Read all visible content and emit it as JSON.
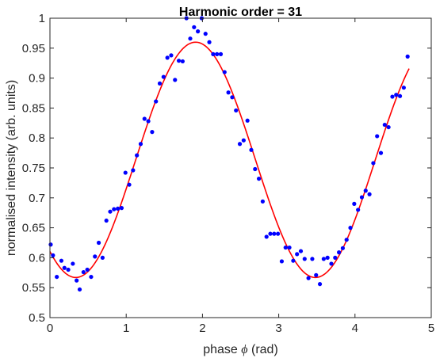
{
  "chart_data": {
    "type": "scatter",
    "title": "Harmonic order = 31",
    "xlabel_prefix": "phase ",
    "xlabel_symbol": "ϕ",
    "xlabel_suffix": " (rad)",
    "ylabel": "normalised intensity (arb. units)",
    "xlim": [
      0,
      5
    ],
    "ylim": [
      0.5,
      1.0
    ],
    "xticks": [
      0,
      1,
      2,
      3,
      4,
      5
    ],
    "xtick_labels": [
      "0",
      "1",
      "2",
      "3",
      "4",
      "5"
    ],
    "yticks": [
      0.5,
      0.55,
      0.6,
      0.65,
      0.7,
      0.75,
      0.8,
      0.85,
      0.9,
      0.95,
      1.0
    ],
    "ytick_labels": [
      "0.5",
      "0.55",
      "0.6",
      "0.65",
      "0.7",
      "0.75",
      "0.8",
      "0.85",
      "0.9",
      "0.95",
      "1"
    ],
    "grid": false,
    "box": true,
    "series": [
      {
        "kind": "scatter",
        "color": "#0000ff",
        "points": [
          [
            0.01,
            0.622
          ],
          [
            0.04,
            0.604
          ],
          [
            0.09,
            0.568
          ],
          [
            0.15,
            0.595
          ],
          [
            0.19,
            0.583
          ],
          [
            0.24,
            0.58
          ],
          [
            0.3,
            0.59
          ],
          [
            0.35,
            0.562
          ],
          [
            0.39,
            0.547
          ],
          [
            0.44,
            0.576
          ],
          [
            0.49,
            0.58
          ],
          [
            0.54,
            0.568
          ],
          [
            0.59,
            0.602
          ],
          [
            0.64,
            0.625
          ],
          [
            0.69,
            0.6
          ],
          [
            0.74,
            0.662
          ],
          [
            0.79,
            0.677
          ],
          [
            0.84,
            0.681
          ],
          [
            0.89,
            0.682
          ],
          [
            0.94,
            0.683
          ],
          [
            0.99,
            0.742
          ],
          [
            1.04,
            0.722
          ],
          [
            1.09,
            0.746
          ],
          [
            1.14,
            0.771
          ],
          [
            1.19,
            0.79
          ],
          [
            1.24,
            0.832
          ],
          [
            1.29,
            0.828
          ],
          [
            1.34,
            0.81
          ],
          [
            1.39,
            0.861
          ],
          [
            1.44,
            0.891
          ],
          [
            1.49,
            0.902
          ],
          [
            1.54,
            0.934
          ],
          [
            1.59,
            0.938
          ],
          [
            1.64,
            0.897
          ],
          [
            1.69,
            0.929
          ],
          [
            1.74,
            0.928
          ],
          [
            1.79,
            1.0
          ],
          [
            1.84,
            0.966
          ],
          [
            1.89,
            0.985
          ],
          [
            1.94,
            0.978
          ],
          [
            1.99,
            1.0
          ],
          [
            2.04,
            0.974
          ],
          [
            2.09,
            0.96
          ],
          [
            2.14,
            0.94
          ],
          [
            2.19,
            0.94
          ],
          [
            2.24,
            0.94
          ],
          [
            2.29,
            0.91
          ],
          [
            2.34,
            0.876
          ],
          [
            2.39,
            0.868
          ],
          [
            2.44,
            0.846
          ],
          [
            2.49,
            0.79
          ],
          [
            2.54,
            0.796
          ],
          [
            2.59,
            0.829
          ],
          [
            2.64,
            0.78
          ],
          [
            2.69,
            0.748
          ],
          [
            2.74,
            0.732
          ],
          [
            2.79,
            0.694
          ],
          [
            2.84,
            0.635
          ],
          [
            2.89,
            0.64
          ],
          [
            2.94,
            0.64
          ],
          [
            2.99,
            0.64
          ],
          [
            3.04,
            0.594
          ],
          [
            3.09,
            0.617
          ],
          [
            3.14,
            0.617
          ],
          [
            3.19,
            0.595
          ],
          [
            3.24,
            0.606
          ],
          [
            3.29,
            0.611
          ],
          [
            3.34,
            0.598
          ],
          [
            3.39,
            0.566
          ],
          [
            3.44,
            0.598
          ],
          [
            3.49,
            0.571
          ],
          [
            3.54,
            0.556
          ],
          [
            3.59,
            0.598
          ],
          [
            3.64,
            0.6
          ],
          [
            3.69,
            0.59
          ],
          [
            3.74,
            0.6
          ],
          [
            3.79,
            0.609
          ],
          [
            3.84,
            0.616
          ],
          [
            3.89,
            0.63
          ],
          [
            3.94,
            0.65
          ],
          [
            3.99,
            0.69
          ],
          [
            4.04,
            0.68
          ],
          [
            4.09,
            0.701
          ],
          [
            4.14,
            0.712
          ],
          [
            4.19,
            0.706
          ],
          [
            4.24,
            0.758
          ],
          [
            4.29,
            0.803
          ],
          [
            4.34,
            0.775
          ],
          [
            4.39,
            0.822
          ],
          [
            4.44,
            0.818
          ],
          [
            4.49,
            0.869
          ],
          [
            4.54,
            0.872
          ],
          [
            4.59,
            0.87
          ],
          [
            4.64,
            0.884
          ],
          [
            4.69,
            0.936
          ]
        ]
      },
      {
        "kind": "line",
        "color": "#ff0000",
        "fit": {
          "offset": 0.7635,
          "amplitude": 0.1965,
          "frequency": 2.0,
          "peak_x": 1.91,
          "x_start": 0.0,
          "x_end": 4.71
        }
      }
    ]
  }
}
